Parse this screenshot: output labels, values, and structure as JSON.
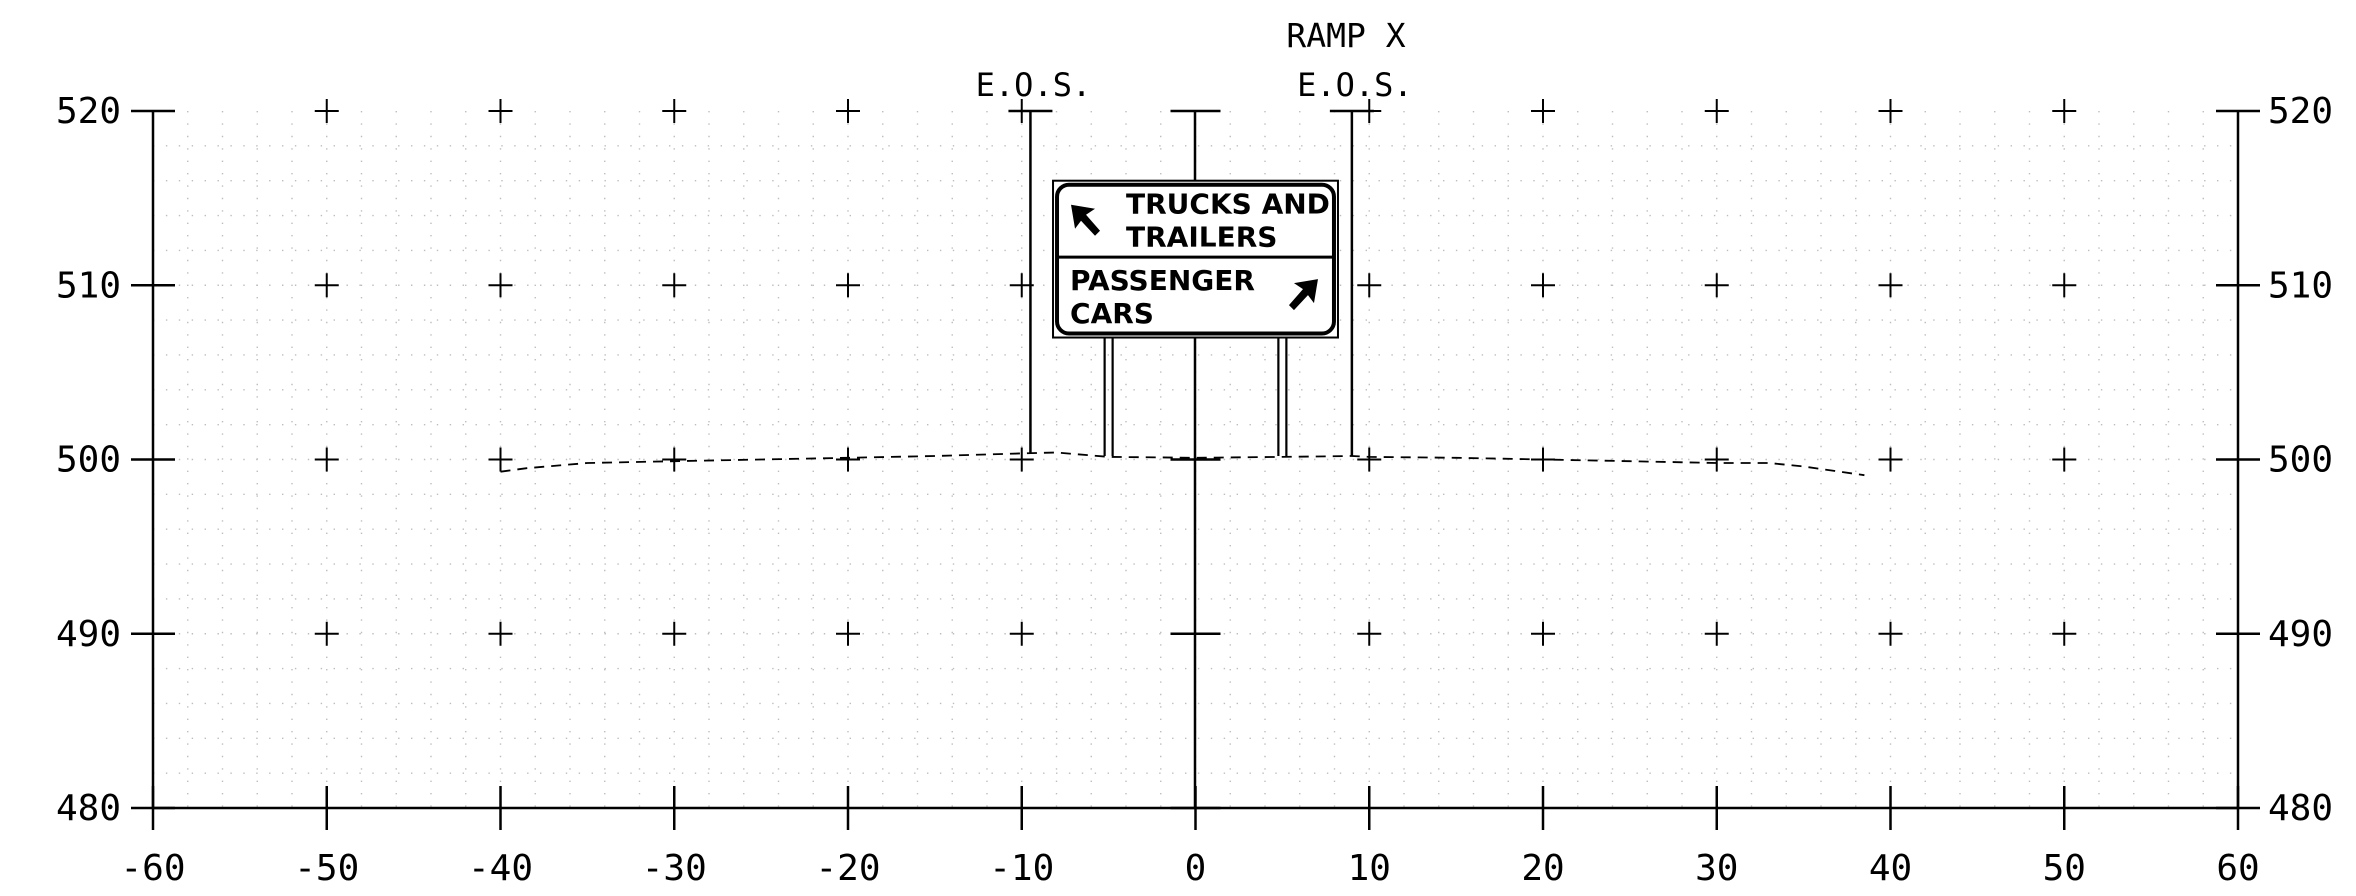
{
  "chart_data": {
    "type": "line",
    "x": [
      -40,
      -38.5,
      -35,
      -30,
      -25,
      -20,
      -15,
      -10,
      -8,
      -5,
      0,
      5,
      9,
      10,
      15,
      20,
      25,
      30,
      33,
      35,
      38.5
    ],
    "y": [
      499.3,
      499.5,
      499.8,
      499.9,
      500.0,
      500.1,
      500.2,
      500.35,
      500.4,
      500.15,
      500.1,
      500.15,
      500.2,
      500.15,
      500.1,
      500.0,
      499.9,
      499.8,
      499.8,
      499.6,
      499.1
    ],
    "xlim": [
      -60,
      60
    ],
    "ylim": [
      480,
      520
    ],
    "x_ticks": [
      -60,
      -50,
      -40,
      -30,
      -20,
      -10,
      0,
      10,
      20,
      30,
      40,
      50,
      60
    ],
    "y_ticks": [
      480,
      490,
      500,
      510,
      520
    ],
    "x_tick_labels": [
      "-60",
      "-50",
      "-40",
      "-30",
      "-20",
      "-10",
      "0",
      "10",
      "20",
      "30",
      "40",
      "50",
      "60"
    ],
    "y_tick_labels": [
      "480",
      "490",
      "500",
      "510",
      "520"
    ],
    "grid": "dotted",
    "annotations": {
      "ramp_label": "RAMP X",
      "eos_left": "E.O.S.",
      "eos_right": "E.O.S."
    },
    "edge_of_shoulder_x": [
      -9.5,
      9
    ],
    "sign_posts_x": [
      -5,
      5
    ],
    "sign_extent": {
      "x": [
        -8.2,
        8.2
      ],
      "y": [
        507,
        516
      ]
    }
  },
  "sign": {
    "top_line1": "TRUCKS AND",
    "top_line2": "TRAILERS",
    "bottom_line1": "PASSENGER",
    "bottom_line2": "CARS",
    "top_arrow": "up-left-arrow-icon",
    "bottom_arrow": "up-right-arrow-icon"
  }
}
